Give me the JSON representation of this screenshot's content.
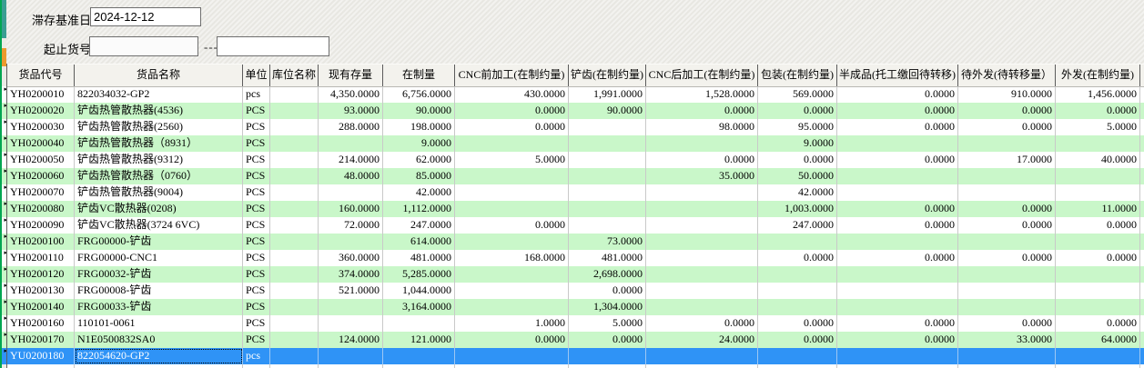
{
  "toolbar": {
    "base_date_label": "滞存基准日",
    "base_date_value": "2024-12-12",
    "range_label": "起止货号",
    "range_from_value": "",
    "range_to_value": "",
    "range_separator": "---"
  },
  "table": {
    "columns": [
      "货品代号",
      "货品名称",
      "单位",
      "库位名称",
      "现有存量",
      "在制量",
      "CNC前加工(在制约量)",
      "铲齿(在制约量)",
      "CNC后加工(在制约量)",
      "包装(在制约量)",
      "半成品(托工缴回待转移)",
      "待外发(待转移量）",
      "外发(在制约量)"
    ],
    "selected_row_index": 16,
    "rows": [
      [
        "YH0200010",
        "822034032-GP2",
        "pcs",
        "",
        "4,350.0000",
        "6,756.0000",
        "430.0000",
        "1,991.0000",
        "1,528.0000",
        "569.0000",
        "0.0000",
        "910.0000",
        "1,456.0000"
      ],
      [
        "YH0200020",
        "铲齿热管散热器(4536)",
        "PCS",
        "",
        "93.0000",
        "90.0000",
        "0.0000",
        "90.0000",
        "0.0000",
        "0.0000",
        "0.0000",
        "0.0000",
        "0.0000"
      ],
      [
        "YH0200030",
        "铲齿热管散热器(2560)",
        "PCS",
        "",
        "288.0000",
        "198.0000",
        "0.0000",
        "",
        "98.0000",
        "95.0000",
        "0.0000",
        "0.0000",
        "5.0000"
      ],
      [
        "YH0200040",
        "铲齿热管散热器（8931）",
        "PCS",
        "",
        "",
        "9.0000",
        "",
        "",
        "",
        "9.0000",
        "",
        "",
        ""
      ],
      [
        "YH0200050",
        "铲齿热管散热器(9312)",
        "PCS",
        "",
        "214.0000",
        "62.0000",
        "5.0000",
        "",
        "0.0000",
        "0.0000",
        "0.0000",
        "17.0000",
        "40.0000"
      ],
      [
        "YH0200060",
        "铲齿热管散热器（0760）",
        "PCS",
        "",
        "48.0000",
        "85.0000",
        "",
        "",
        "35.0000",
        "50.0000",
        "",
        "",
        ""
      ],
      [
        "YH0200070",
        "铲齿热管散热器(9004)",
        "PCS",
        "",
        "",
        "42.0000",
        "",
        "",
        "",
        "42.0000",
        "",
        "",
        ""
      ],
      [
        "YH0200080",
        "铲齿VC散热器(0208)",
        "PCS",
        "",
        "160.0000",
        "1,112.0000",
        "",
        "",
        "",
        "1,003.0000",
        "0.0000",
        "0.0000",
        "11.0000"
      ],
      [
        "YH0200090",
        "铲齿VC散热器(3724  6VC)",
        "PCS",
        "",
        "72.0000",
        "247.0000",
        "0.0000",
        "",
        "",
        "247.0000",
        "0.0000",
        "0.0000",
        "0.0000"
      ],
      [
        "YH0200100",
        "FRG00000-铲齿",
        "PCS",
        "",
        "",
        "614.0000",
        "",
        "73.0000",
        "",
        "",
        "",
        "",
        ""
      ],
      [
        "YH0200110",
        "FRG00000-CNC1",
        "PCS",
        "",
        "360.0000",
        "481.0000",
        "168.0000",
        "481.0000",
        "",
        "0.0000",
        "0.0000",
        "0.0000",
        "0.0000"
      ],
      [
        "YH0200120",
        "FRG00032-铲齿",
        "PCS",
        "",
        "374.0000",
        "5,285.0000",
        "",
        "2,698.0000",
        "",
        "",
        "",
        "",
        ""
      ],
      [
        "YH0200130",
        "FRG00008-铲齿",
        "PCS",
        "",
        "521.0000",
        "1,044.0000",
        "",
        "0.0000",
        "",
        "",
        "",
        "",
        ""
      ],
      [
        "YH0200140",
        "FRG00033-铲齿",
        "PCS",
        "",
        "",
        "3,164.0000",
        "",
        "1,304.0000",
        "",
        "",
        "",
        "",
        ""
      ],
      [
        "YH0200160",
        "110101-0061",
        "PCS",
        "",
        "",
        "",
        "1.0000",
        "5.0000",
        "0.0000",
        "0.0000",
        "0.0000",
        "0.0000",
        "0.0000"
      ],
      [
        "YH0200170",
        "N1E0500832SA0",
        "PCS",
        "",
        "124.0000",
        "121.0000",
        "0.0000",
        "0.0000",
        "24.0000",
        "0.0000",
        "0.0000",
        "33.0000",
        "64.0000"
      ],
      [
        "YU0200180",
        "822054620-GP2",
        "pcs",
        "",
        "",
        "",
        "",
        "",
        "",
        "",
        "",
        "",
        ""
      ]
    ]
  },
  "colors": {
    "row_green": "#c9f7c9",
    "row_selected": "#2f93f6",
    "strip_green_line": "#00a651",
    "strip_teal": "#3a9e92",
    "strip_orange": "#ec9a2e",
    "header_bg": "#f3f2ed"
  }
}
